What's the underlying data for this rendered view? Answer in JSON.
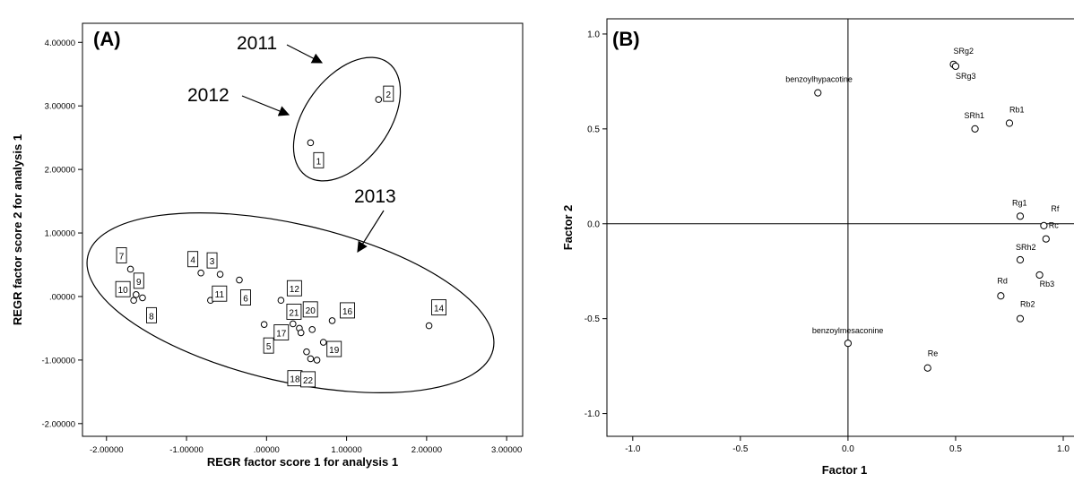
{
  "chart_data": [
    {
      "type": "scatter",
      "panel_label": "(A)",
      "xlabel": "REGR factor score  1 for analysis 1",
      "ylabel": "REGR factor score  2 for analysis 1",
      "xlim": [
        -2.3,
        3.2
      ],
      "ylim": [
        -2.2,
        4.3
      ],
      "x_ticks": [
        {
          "value": -2,
          "label": "-2.00000"
        },
        {
          "value": -1,
          "label": "-1.00000"
        },
        {
          "value": 0,
          "label": ".00000"
        },
        {
          "value": 1,
          "label": "1.00000"
        },
        {
          "value": 2,
          "label": "2.00000"
        },
        {
          "value": 3,
          "label": "3.00000"
        }
      ],
      "y_ticks": [
        {
          "value": -2,
          "label": "-2.00000"
        },
        {
          "value": -1,
          "label": "-1.00000"
        },
        {
          "value": 0,
          "label": ".00000"
        },
        {
          "value": 1,
          "label": "1.00000"
        },
        {
          "value": 2,
          "label": "2.00000"
        },
        {
          "value": 3,
          "label": "3.00000"
        },
        {
          "value": 4,
          "label": "4.00000"
        }
      ],
      "grid": false,
      "points": [
        {
          "label": "1",
          "x": 0.55,
          "y": 2.42
        },
        {
          "label": "2",
          "x": 1.4,
          "y": 3.1
        },
        {
          "label": "3",
          "x": -0.58,
          "y": 0.35
        },
        {
          "label": "4",
          "x": -0.82,
          "y": 0.37
        },
        {
          "label": "5",
          "x": -0.03,
          "y": -0.44
        },
        {
          "label": "6",
          "x": -0.34,
          "y": 0.26
        },
        {
          "label": "7",
          "x": -1.7,
          "y": 0.43
        },
        {
          "label": "8",
          "x": -1.55,
          "y": -0.02
        },
        {
          "label": "9",
          "x": -1.63,
          "y": 0.03
        },
        {
          "label": "10",
          "x": -1.66,
          "y": -0.06
        },
        {
          "label": "11",
          "x": -0.7,
          "y": -0.06
        },
        {
          "label": "12",
          "x": 0.18,
          "y": -0.06
        },
        {
          "label": "16",
          "x": 0.82,
          "y": -0.38
        },
        {
          "label": "17",
          "x": 0.33,
          "y": -0.43
        },
        {
          "label": "18",
          "x": 0.5,
          "y": -0.87
        },
        {
          "label": "19",
          "x": 0.71,
          "y": -0.72
        },
        {
          "label": "20",
          "x": 0.57,
          "y": -0.52
        },
        {
          "label": "21",
          "x": 0.41,
          "y": -0.5
        },
        {
          "label": "22",
          "x": 0.63,
          "y": -1.0
        },
        {
          "label": "",
          "x": 0.55,
          "y": -0.98
        },
        {
          "label": "",
          "x": 0.43,
          "y": -0.57
        },
        {
          "label": "14",
          "x": 2.03,
          "y": -0.46
        }
      ],
      "groups": [
        {
          "name": "2011"
        },
        {
          "name": "2012"
        },
        {
          "name": "2013"
        }
      ]
    },
    {
      "type": "scatter",
      "panel_label": "(B)",
      "xlabel": "Factor 1",
      "ylabel": "Factor 2",
      "xlim": [
        -1.12,
        1.05
      ],
      "ylim": [
        -1.12,
        1.08
      ],
      "x_ticks": [
        {
          "value": -1,
          "label": "-1.0"
        },
        {
          "value": -0.5,
          "label": "-0.5"
        },
        {
          "value": 0,
          "label": "0.0"
        },
        {
          "value": 0.5,
          "label": "0.5"
        },
        {
          "value": 1,
          "label": "1.0"
        }
      ],
      "y_ticks": [
        {
          "value": -1,
          "label": "-1.0"
        },
        {
          "value": -0.5,
          "label": "-0.5"
        },
        {
          "value": 0,
          "label": "0.0"
        },
        {
          "value": 0.5,
          "label": "0.5"
        },
        {
          "value": 1,
          "label": "1.0"
        }
      ],
      "grid": false,
      "reference_lines": [
        0,
        0
      ],
      "points": [
        {
          "label": "benzoylhypacotine",
          "x": -0.14,
          "y": 0.69
        },
        {
          "label": "SRg2",
          "x": 0.49,
          "y": 0.84
        },
        {
          "label": "SRg3",
          "x": 0.5,
          "y": 0.83
        },
        {
          "label": "SRh1",
          "x": 0.59,
          "y": 0.5
        },
        {
          "label": "Rb1",
          "x": 0.75,
          "y": 0.53
        },
        {
          "label": "Rg1",
          "x": 0.8,
          "y": 0.04
        },
        {
          "label": "Rf",
          "x": 0.91,
          "y": -0.01
        },
        {
          "label": "Rc",
          "x": 0.92,
          "y": -0.08
        },
        {
          "label": "SRh2",
          "x": 0.8,
          "y": -0.19
        },
        {
          "label": "Rb3",
          "x": 0.89,
          "y": -0.27
        },
        {
          "label": "Rd",
          "x": 0.71,
          "y": -0.38
        },
        {
          "label": "Rb2",
          "x": 0.8,
          "y": -0.5
        },
        {
          "label": "benzoylmesaconine",
          "x": 0.0,
          "y": -0.63
        },
        {
          "label": "Re",
          "x": 0.37,
          "y": -0.76
        }
      ]
    }
  ]
}
